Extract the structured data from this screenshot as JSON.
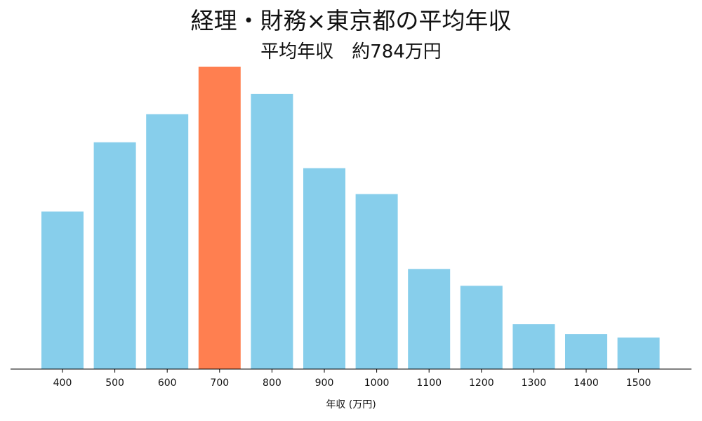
{
  "chart_data": {
    "type": "bar",
    "title": "経理・財務×東京都の平均年収",
    "subtitle": "平均年収　約784万円",
    "xlabel": "年収 (万円)",
    "ylabel": "",
    "categories": [
      "400",
      "500",
      "600",
      "700",
      "800",
      "900",
      "1000",
      "1100",
      "1200",
      "1300",
      "1400",
      "1500"
    ],
    "values": [
      225,
      324,
      364,
      432,
      393,
      287,
      250,
      143,
      119,
      64,
      50,
      45
    ],
    "ylim": [
      0,
      432
    ],
    "highlight_category": "700",
    "y_axis_visible": false,
    "grid": false,
    "colors": {
      "bar": "#87CEEB",
      "highlight": "#FF7F50",
      "axis": "#000000"
    }
  }
}
